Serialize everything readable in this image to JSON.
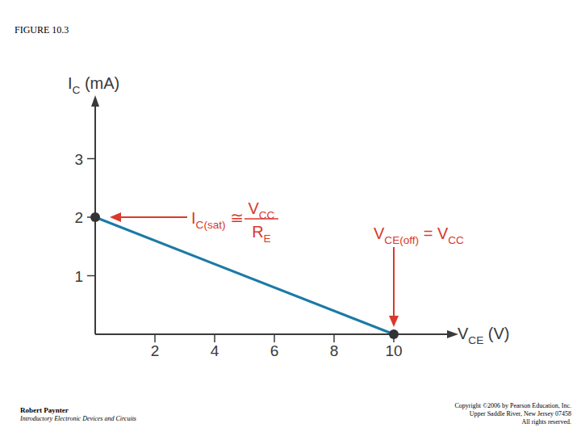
{
  "figure_label": "FIGURE 10.3",
  "chart_data": {
    "type": "line",
    "x_label": [
      "V",
      "CE",
      " (V)"
    ],
    "y_label": [
      "I",
      "C",
      " (mA)"
    ],
    "x": [
      0,
      10
    ],
    "values": [
      2,
      0
    ],
    "color": "#1b7aa5",
    "marker": "circle",
    "xlim": [
      0,
      12
    ],
    "ylim": [
      0,
      4
    ],
    "xticks": [
      2,
      4,
      6,
      8,
      10
    ],
    "yticks": [
      1,
      2,
      3
    ],
    "grid": false,
    "annotations": [
      {
        "text": [
          "I",
          "C(sat)",
          " ≅ "
        ],
        "numerator": [
          "V",
          "CC"
        ],
        "denominator": [
          "R",
          "E"
        ]
      },
      {
        "text": [
          "V",
          "CE(off)",
          " = V",
          "CC"
        ]
      }
    ]
  },
  "footer": {
    "left": [
      "Robert Paynter",
      "Introductory Electronic Devices and Circuits"
    ],
    "right": [
      "Copyright ©2006 by Pearson Education, Inc.",
      "Upper Saddle River, New Jersey 07458",
      "All rights reserved."
    ]
  }
}
